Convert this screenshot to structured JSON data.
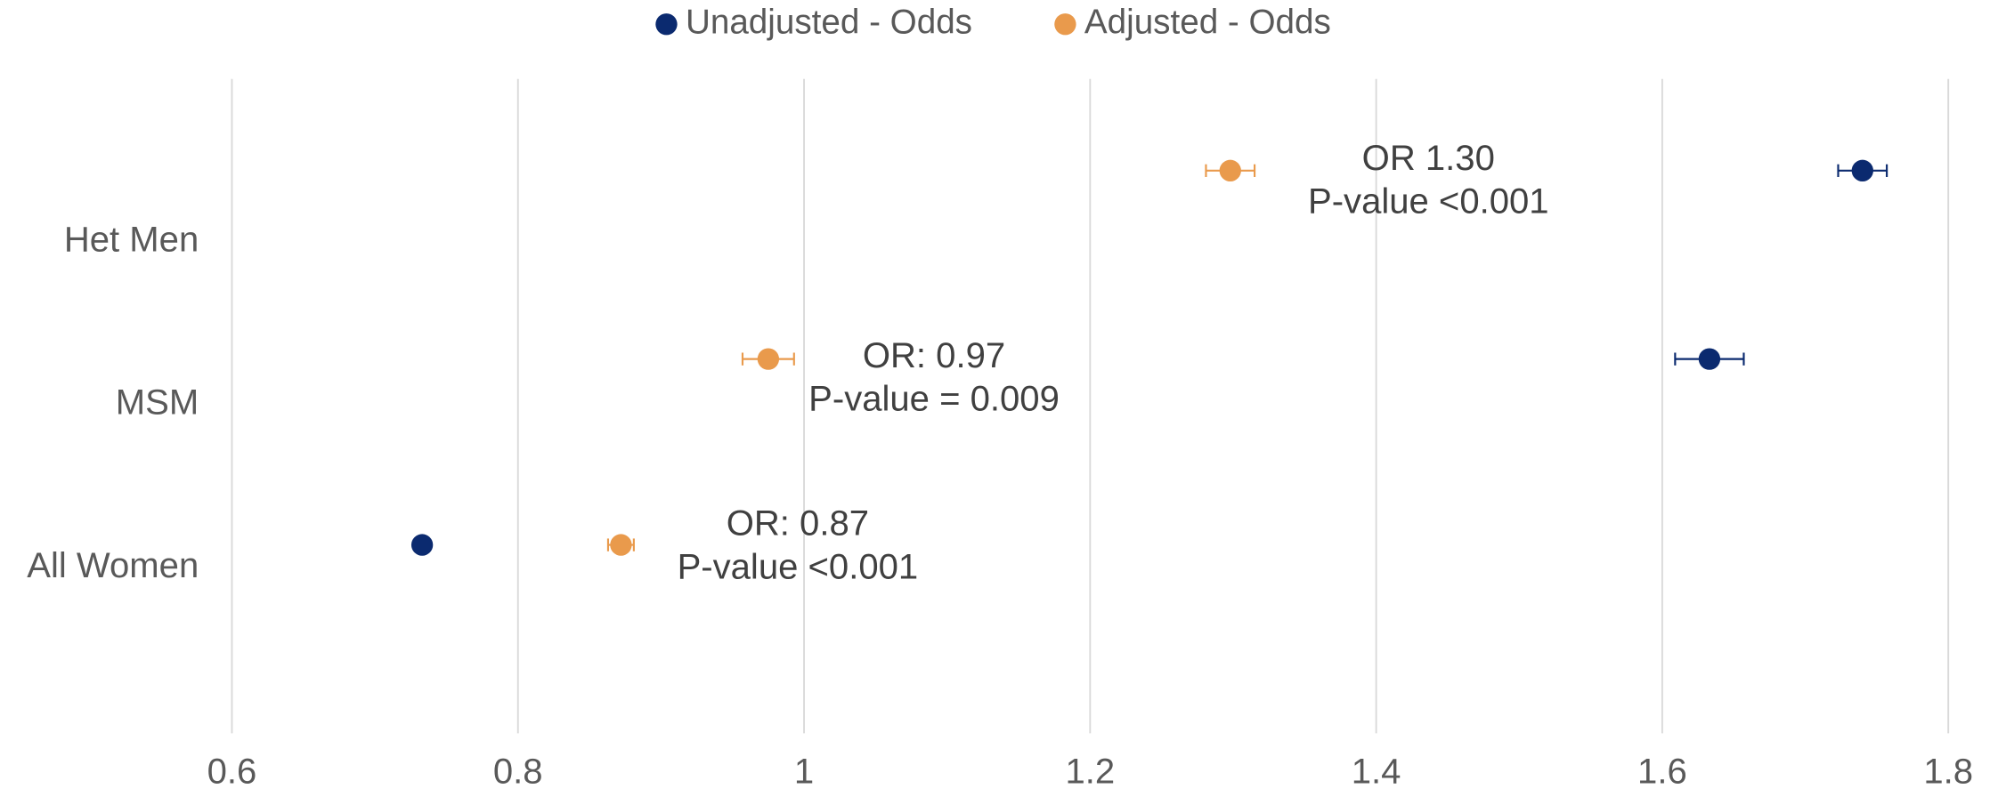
{
  "chart_data": {
    "type": "dot",
    "categories": [
      "Het Men",
      "MSM",
      "All Women"
    ],
    "series": [
      {
        "name": "Unadjusted - Odds",
        "color": "#0b2a6f",
        "values": [
          1.74,
          1.633,
          0.733
        ],
        "errors": [
          0.017,
          0.024,
          null
        ]
      },
      {
        "name": "Adjusted - Odds",
        "color": "#e99a4c",
        "values": [
          1.298,
          0.975,
          0.872
        ],
        "errors": [
          0.017,
          0.018,
          0.009
        ]
      }
    ],
    "annotations": [
      [
        "OR 1.30",
        "P-value <0.001"
      ],
      [
        "OR: 0.97",
        "P-value = 0.009"
      ],
      [
        "OR: 0.87",
        "P-value <0.001"
      ]
    ],
    "xlim": [
      0.6,
      1.8
    ],
    "xticks": [
      0.6,
      0.8,
      1,
      1.2,
      1.4,
      1.6,
      1.8
    ],
    "grid": true,
    "legend": "top"
  }
}
